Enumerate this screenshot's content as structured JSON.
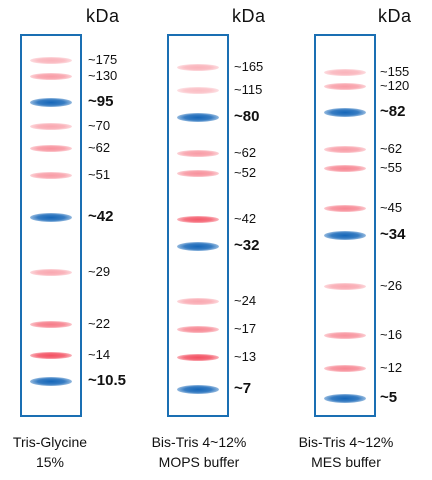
{
  "unit": "kDa",
  "colors": {
    "red": "#f0243a",
    "blue": "#1566b8",
    "border": "#1a6fb3"
  },
  "panels": [
    {
      "caption_line1": "Tris-Glycine",
      "caption_line2": "15%",
      "bands": [
        {
          "label": "~175",
          "color": "red",
          "intensity": 0.35,
          "bold": false
        },
        {
          "label": "~130",
          "color": "red",
          "intensity": 0.45,
          "bold": false
        },
        {
          "label": "~95",
          "color": "blue",
          "intensity": 1.0,
          "bold": true
        },
        {
          "label": "~70",
          "color": "red",
          "intensity": 0.4,
          "bold": false
        },
        {
          "label": "~62",
          "color": "red",
          "intensity": 0.5,
          "bold": false
        },
        {
          "label": "~51",
          "color": "red",
          "intensity": 0.45,
          "bold": false
        },
        {
          "label": "~42",
          "color": "blue",
          "intensity": 1.0,
          "bold": true
        },
        {
          "label": "~29",
          "color": "red",
          "intensity": 0.4,
          "bold": false
        },
        {
          "label": "~22",
          "color": "red",
          "intensity": 0.6,
          "bold": false
        },
        {
          "label": "~14",
          "color": "red",
          "intensity": 0.8,
          "bold": false
        },
        {
          "label": "~10.5",
          "color": "blue",
          "intensity": 1.0,
          "bold": true
        }
      ]
    },
    {
      "caption_line1": "Bis-Tris 4~12%",
      "caption_line2": "MOPS buffer",
      "bands": [
        {
          "label": "~165",
          "color": "red",
          "intensity": 0.35,
          "bold": false
        },
        {
          "label": "~115",
          "color": "red",
          "intensity": 0.3,
          "bold": false
        },
        {
          "label": "~80",
          "color": "blue",
          "intensity": 1.0,
          "bold": true
        },
        {
          "label": "~62",
          "color": "red",
          "intensity": 0.45,
          "bold": false
        },
        {
          "label": "~52",
          "color": "red",
          "intensity": 0.5,
          "bold": false
        },
        {
          "label": "~42",
          "color": "red",
          "intensity": 0.75,
          "bold": false
        },
        {
          "label": "~32",
          "color": "blue",
          "intensity": 1.0,
          "bold": true
        },
        {
          "label": "~24",
          "color": "red",
          "intensity": 0.4,
          "bold": false
        },
        {
          "label": "~17",
          "color": "red",
          "intensity": 0.55,
          "bold": false
        },
        {
          "label": "~13",
          "color": "red",
          "intensity": 0.8,
          "bold": false
        },
        {
          "label": "~7",
          "color": "blue",
          "intensity": 1.0,
          "bold": true
        }
      ]
    },
    {
      "caption_line1": "Bis-Tris 4~12%",
      "caption_line2": "MES buffer",
      "bands": [
        {
          "label": "~155",
          "color": "red",
          "intensity": 0.35,
          "bold": false
        },
        {
          "label": "~120",
          "color": "red",
          "intensity": 0.45,
          "bold": false
        },
        {
          "label": "~82",
          "color": "blue",
          "intensity": 1.0,
          "bold": true
        },
        {
          "label": "~62",
          "color": "red",
          "intensity": 0.45,
          "bold": false
        },
        {
          "label": "~55",
          "color": "red",
          "intensity": 0.55,
          "bold": false
        },
        {
          "label": "~45",
          "color": "red",
          "intensity": 0.55,
          "bold": false
        },
        {
          "label": "~34",
          "color": "blue",
          "intensity": 1.0,
          "bold": true
        },
        {
          "label": "~26",
          "color": "red",
          "intensity": 0.4,
          "bold": false
        },
        {
          "label": "~16",
          "color": "red",
          "intensity": 0.5,
          "bold": false
        },
        {
          "label": "~12",
          "color": "red",
          "intensity": 0.55,
          "bold": false
        },
        {
          "label": "~5",
          "color": "blue",
          "intensity": 1.0,
          "bold": true
        }
      ]
    }
  ]
}
